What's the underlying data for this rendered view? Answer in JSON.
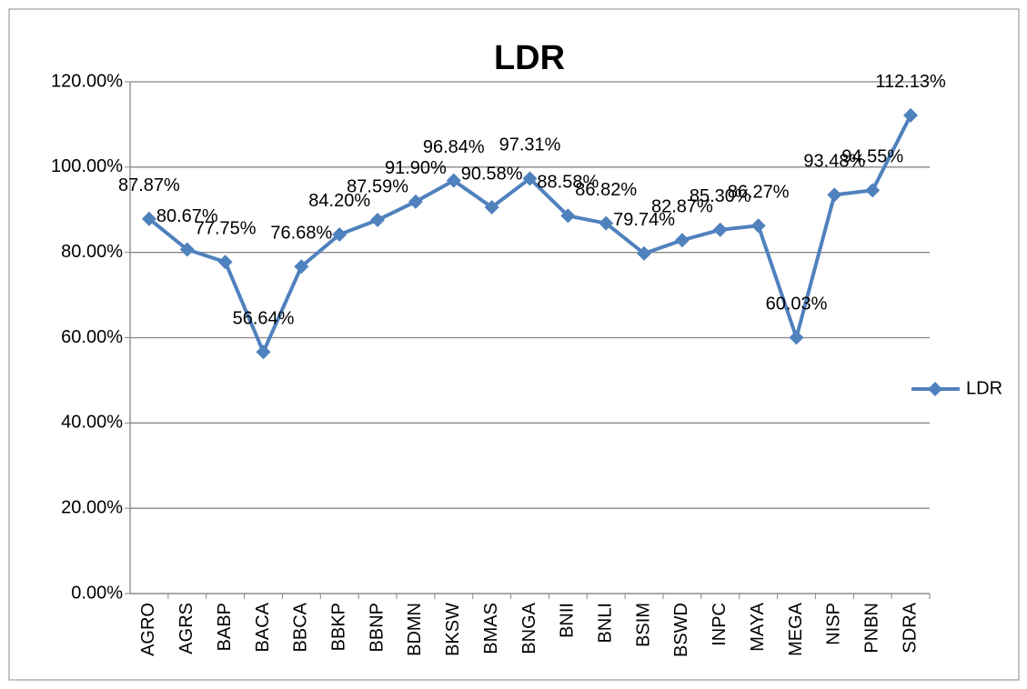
{
  "chart_data": {
    "type": "line",
    "title": "LDR",
    "categories": [
      "AGRO",
      "AGRS",
      "BABP",
      "BACA",
      "BBCA",
      "BBKP",
      "BBNP",
      "BDMN",
      "BKSW",
      "BMAS",
      "BNGA",
      "BNII",
      "BNLI",
      "BSIM",
      "BSWD",
      "INPC",
      "MAYA",
      "MEGA",
      "NISP",
      "PNBN",
      "SDRA"
    ],
    "series": [
      {
        "name": "LDR",
        "color": "#4f81bd",
        "values": [
          87.87,
          80.67,
          77.75,
          56.64,
          76.68,
          84.2,
          87.59,
          91.9,
          96.84,
          90.58,
          97.31,
          88.58,
          86.82,
          79.74,
          82.87,
          85.3,
          86.27,
          60.03,
          93.48,
          94.55,
          112.13
        ],
        "value_labels": [
          "87.87%",
          "80.67%",
          "77.75%",
          "56.64%",
          "76.68%",
          "84.20%",
          "87.59%",
          "91.90%",
          "96.84%",
          "90.58%",
          "97.31%",
          "88.58%",
          "86.82%",
          "79.74%",
          "82.87%",
          "85.30%",
          "86.27%",
          "60.03%",
          "93.48%",
          "94.55%",
          "112.13%"
        ]
      }
    ],
    "ylim": [
      0,
      120
    ],
    "yticks": [
      {
        "value": 0,
        "label": "0.00%"
      },
      {
        "value": 20,
        "label": "20.00%"
      },
      {
        "value": 40,
        "label": "40.00%"
      },
      {
        "value": 60,
        "label": "60.00%"
      },
      {
        "value": 80,
        "label": "80.00%"
      },
      {
        "value": 100,
        "label": "100.00%"
      },
      {
        "value": 120,
        "label": "120.00%"
      }
    ],
    "grid": true,
    "legend": "right"
  }
}
